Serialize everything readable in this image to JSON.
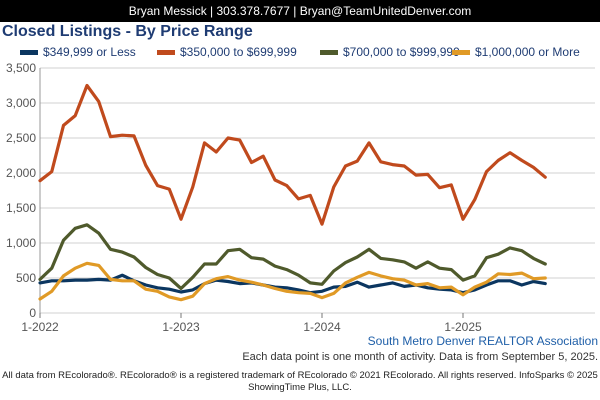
{
  "header": {
    "text": "Bryan Messick | 303.378.7677 | Bryan@TeamUnitedDenver.com"
  },
  "colors": {
    "navy": "#0b3660",
    "orange": "#c04a1d",
    "olive": "#4f5a2c",
    "gold": "#e09a26",
    "grid": "#d0d0d0"
  },
  "chart_data": {
    "type": "line",
    "title": "Closed Listings - By Price Range",
    "xlabel": "",
    "ylabel": "",
    "ylim": [
      0,
      3500
    ],
    "yticks": [
      0,
      500,
      1000,
      1500,
      2000,
      2500,
      3000,
      3500
    ],
    "ytick_labels": [
      "0",
      "500",
      "1,000",
      "1,500",
      "2,000",
      "2,500",
      "3,000",
      "3,500"
    ],
    "xticks": [
      "1-2022",
      "1-2023",
      "1-2024",
      "1-2025"
    ],
    "x_start": "2022-01",
    "grid": true,
    "legend": "top",
    "series": [
      {
        "name": "$349,999 or Less",
        "color": "#0b3660",
        "values": [
          430,
          460,
          460,
          470,
          470,
          480,
          470,
          540,
          460,
          400,
          360,
          340,
          300,
          330,
          420,
          470,
          450,
          420,
          430,
          400,
          370,
          360,
          330,
          290,
          310,
          370,
          380,
          440,
          370,
          400,
          430,
          380,
          400,
          360,
          340,
          330,
          290,
          330,
          400,
          460,
          460,
          400,
          450,
          420
        ]
      },
      {
        "name": "$350,000 to $699,999",
        "color": "#c04a1d",
        "values": [
          1890,
          2020,
          2680,
          2820,
          3250,
          3020,
          2520,
          2540,
          2530,
          2110,
          1820,
          1770,
          1340,
          1800,
          2430,
          2300,
          2500,
          2470,
          2150,
          2240,
          1900,
          1820,
          1630,
          1680,
          1270,
          1800,
          2100,
          2170,
          2430,
          2160,
          2120,
          2100,
          1970,
          1980,
          1790,
          1830,
          1340,
          1620,
          2020,
          2180,
          2290,
          2180,
          2080,
          1940
        ]
      },
      {
        "name": "$700,000 to $999,999",
        "color": "#4f5a2c",
        "values": [
          480,
          640,
          1040,
          1210,
          1260,
          1140,
          910,
          870,
          800,
          650,
          550,
          500,
          350,
          510,
          700,
          700,
          890,
          910,
          790,
          770,
          670,
          620,
          540,
          430,
          410,
          600,
          720,
          800,
          910,
          780,
          760,
          730,
          640,
          730,
          640,
          620,
          470,
          530,
          790,
          840,
          930,
          890,
          780,
          700
        ]
      },
      {
        "name": "$1,000,000 or More",
        "color": "#e09a26",
        "values": [
          200,
          310,
          530,
          640,
          710,
          680,
          480,
          460,
          460,
          340,
          310,
          230,
          190,
          240,
          420,
          490,
          520,
          470,
          440,
          400,
          350,
          310,
          290,
          280,
          220,
          280,
          430,
          510,
          580,
          530,
          490,
          470,
          400,
          420,
          360,
          370,
          260,
          370,
          440,
          560,
          550,
          570,
          490,
          500
        ]
      }
    ]
  },
  "notes": {
    "association": "South Metro Denver REALTOR Association",
    "subnote": "Each data point is one month of activity. Data is from September 5, 2025.",
    "footer_line1": "All data from REcolorado®. REcolorado® is a registered trademark of REcolorado © 2021 REcolorado. All rights reserved. InfoSparks © 2025",
    "footer_line2": "ShowingTime Plus, LLC."
  }
}
